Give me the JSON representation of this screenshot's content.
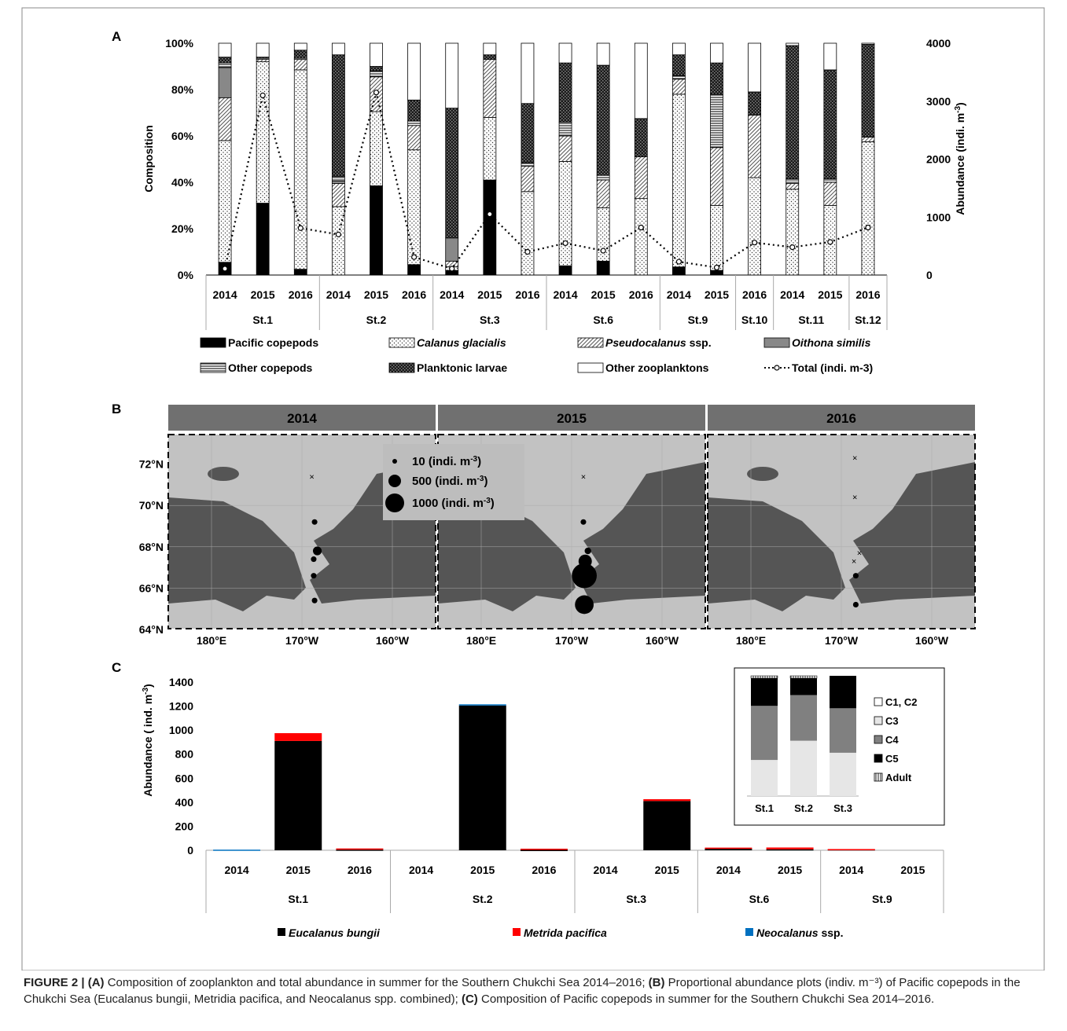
{
  "figure": {
    "panel_labels": [
      "A",
      "B",
      "C"
    ],
    "caption": {
      "label": "FIGURE 2 |",
      "partA_tag": "(A)",
      "partA_text": " Composition of zooplankton and total abundance in summer for the Southern Chukchi Sea 2014–2016; ",
      "partB_tag": "(B)",
      "partB_text": " Proportional abundance plots (indiv. m⁻³) of Pacific copepods in the Chukchi Sea (Eucalanus bungii, Metridia pacifica, and Neocalanus spp. combined); ",
      "partC_tag": "(C)",
      "partC_text": " Composition of Pacific copepods in summer for the Southern Chukchi Sea 2014–2016."
    }
  },
  "chart_data": [
    {
      "id": "A",
      "type": "bar",
      "stacked": true,
      "ylabel": "Composition",
      "y2label": "Abundance (indi. m-3)",
      "ylim": [
        0,
        100
      ],
      "y2lim": [
        0,
        4000
      ],
      "yticks": [
        "0%",
        "20%",
        "40%",
        "60%",
        "80%",
        "100%"
      ],
      "y2ticks": [
        "0",
        "1000",
        "2000",
        "3000",
        "4000"
      ],
      "categories": [
        "2014",
        "2015",
        "2016",
        "2014",
        "2015",
        "2016",
        "2014",
        "2015",
        "2016",
        "2014",
        "2015",
        "2016",
        "2014",
        "2015",
        "2016",
        "2014",
        "2015",
        "2016"
      ],
      "stations": [
        {
          "name": "St.1",
          "span": 3
        },
        {
          "name": "St.2",
          "span": 3
        },
        {
          "name": "St.3",
          "span": 3
        },
        {
          "name": "St.6",
          "span": 3
        },
        {
          "name": "St.9",
          "span": 2
        },
        {
          "name": "St.10",
          "span": 1
        },
        {
          "name": "St.11",
          "span": 2
        },
        {
          "name": "St.12",
          "span": 1
        }
      ],
      "series": [
        {
          "name": "Pacific copepods",
          "italic": false,
          "color": "#000000",
          "pattern": "solid",
          "values": [
            5.5,
            31,
            2.5,
            0,
            38.5,
            4.5,
            2,
            41,
            0,
            4,
            6,
            0,
            3.5,
            2,
            0,
            0,
            0,
            0
          ]
        },
        {
          "name": "Calanus glacialis",
          "italic": true,
          "color": "#ffffff",
          "pattern": "dots",
          "values": [
            52.5,
            61,
            86,
            29.5,
            32,
            49.5,
            1.5,
            27,
            36,
            45,
            23,
            33,
            74.5,
            28,
            42,
            37,
            30,
            57.5
          ]
        },
        {
          "name": "Pseudocalanus ssp.",
          "italic": true,
          "color": "#dddddd",
          "pattern": "diag",
          "values": [
            18.5,
            1,
            4.5,
            10,
            15,
            10.5,
            2.5,
            25,
            11,
            11,
            12,
            18,
            6.5,
            25,
            27,
            2.5,
            10,
            2
          ]
        },
        {
          "name": "Oithona similis",
          "italic": true,
          "color": "#888888",
          "pattern": "solid",
          "values": [
            13,
            0,
            0,
            1,
            0,
            0,
            10,
            0,
            0,
            0,
            0,
            0,
            0,
            0,
            0,
            0,
            0,
            0
          ]
        },
        {
          "name": "Other copepods",
          "italic": false,
          "color": "#eeeeee",
          "pattern": "hlines",
          "values": [
            2,
            0.5,
            0.5,
            2,
            2.5,
            2,
            0,
            0,
            1.5,
            6,
            2,
            0,
            1.5,
            23,
            0,
            2,
            1.5,
            0
          ]
        },
        {
          "name": "Planktonic larvae",
          "italic": false,
          "color": "#2a2a2a",
          "pattern": "checker",
          "values": [
            2.5,
            0.5,
            3.5,
            52.5,
            2,
            9,
            56,
            2,
            25.5,
            25.5,
            47.5,
            16.5,
            9,
            13.5,
            10,
            57.5,
            47,
            40
          ]
        },
        {
          "name": "Other zooplanktons",
          "italic": false,
          "color": "#ffffff",
          "pattern": "solid",
          "values": [
            6,
            6,
            3,
            5,
            10,
            24.5,
            28,
            5,
            26,
            8.5,
            9.5,
            32.5,
            5,
            8.5,
            21,
            1,
            11.5,
            0.5
          ]
        }
      ],
      "total": {
        "name": "Total (indi. m-3)",
        "values": [
          110,
          3100,
          810,
          700,
          3150,
          310,
          110,
          1050,
          400,
          550,
          420,
          820,
          230,
          130,
          560,
          480,
          570,
          820
        ]
      }
    },
    {
      "id": "B",
      "type": "scatter",
      "panels": [
        "2014",
        "2015",
        "2016"
      ],
      "lon_ticks": [
        "180°E",
        "170°W",
        "160°W"
      ],
      "lat_ticks": [
        "72°N",
        "70°N",
        "68°N",
        "66°N",
        "64°N"
      ],
      "size_legend": [
        {
          "label": "10 (indi. m",
          "value": 10
        },
        {
          "label": "500 (indi. m",
          "value": 500
        },
        {
          "label": "1000 (indi. m",
          "value": 1000
        }
      ],
      "size_legend_exp": "-3",
      "size_legend_close": ")",
      "stations_by_year": [
        [
          {
            "lon": -168.9,
            "lat": 71.4,
            "value": 0
          },
          {
            "lon": -168.6,
            "lat": 69.2,
            "value": 15
          },
          {
            "lon": -168.3,
            "lat": 67.8,
            "value": 80
          },
          {
            "lon": -168.7,
            "lat": 67.4,
            "value": 15
          },
          {
            "lon": -168.7,
            "lat": 66.6,
            "value": 15
          },
          {
            "lon": -168.6,
            "lat": 65.4,
            "value": 15
          }
        ],
        [
          {
            "lon": -168.7,
            "lat": 71.4,
            "value": 0
          },
          {
            "lon": -168.7,
            "lat": 69.2,
            "value": 15
          },
          {
            "lon": -168.2,
            "lat": 67.8,
            "value": 30
          },
          {
            "lon": -168.5,
            "lat": 67.3,
            "value": 260
          },
          {
            "lon": -168.6,
            "lat": 66.6,
            "value": 1200
          },
          {
            "lon": -168.6,
            "lat": 65.2,
            "value": 610
          }
        ],
        [
          {
            "lon": -168.5,
            "lat": 72.3,
            "value": 0
          },
          {
            "lon": -168.5,
            "lat": 70.4,
            "value": 0
          },
          {
            "lon": -168.0,
            "lat": 67.7,
            "value": 0
          },
          {
            "lon": -168.6,
            "lat": 67.3,
            "value": 0
          },
          {
            "lon": -168.4,
            "lat": 66.6,
            "value": 15
          },
          {
            "lon": -168.4,
            "lat": 65.2,
            "value": 15
          }
        ]
      ]
    },
    {
      "id": "C",
      "type": "bar",
      "stacked": true,
      "ylabel": "Abundance ( ind. m-3)",
      "ylim": [
        0,
        1400
      ],
      "yticks": [
        "0",
        "200",
        "400",
        "600",
        "800",
        "1000",
        "1200",
        "1400"
      ],
      "categories": [
        "2014",
        "2015",
        "2016",
        "2014",
        "2015",
        "2016",
        "2014",
        "2015",
        "2014",
        "2015",
        "2014",
        "2015"
      ],
      "stations": [
        {
          "name": "St.1",
          "span": 3
        },
        {
          "name": "St.2",
          "span": 3
        },
        {
          "name": "St.3",
          "span": 2
        },
        {
          "name": "St.6",
          "span": 2
        },
        {
          "name": "St.9",
          "span": 2
        }
      ],
      "series": [
        {
          "name": "Eucalanus bungii",
          "color": "#000000",
          "values": [
            0,
            910,
            5,
            0,
            1205,
            3,
            0,
            410,
            12,
            8,
            8,
            0
          ]
        },
        {
          "name": "Metrida pacifica",
          "color": "#ff0000",
          "values": [
            0,
            65,
            10,
            0,
            0,
            10,
            0,
            15,
            10,
            15,
            2,
            0
          ]
        },
        {
          "name": "Neocalanus ssp.",
          "color": "#0070c0",
          "values": [
            5,
            0,
            0,
            0,
            10,
            0,
            0,
            0,
            0,
            0,
            0,
            0
          ]
        }
      ],
      "inset": {
        "type": "bar",
        "stacked": true,
        "categories": [
          "St.1",
          "St.2",
          "St.3"
        ],
        "series": [
          {
            "name": "C1, C2",
            "color": "#ffffff",
            "values": [
              0,
              0,
              0
            ]
          },
          {
            "name": "C3",
            "color": "#e6e6e6",
            "values": [
              30,
              46,
              36
            ]
          },
          {
            "name": "C4",
            "color": "#808080",
            "values": [
              45,
              38,
              37
            ]
          },
          {
            "name": "C5",
            "color": "#000000",
            "values": [
              23,
              14,
              27
            ]
          },
          {
            "name": "Adult",
            "color": "#ffffff",
            "pattern": "vlines",
            "values": [
              2,
              2,
              0
            ]
          }
        ]
      }
    }
  ]
}
